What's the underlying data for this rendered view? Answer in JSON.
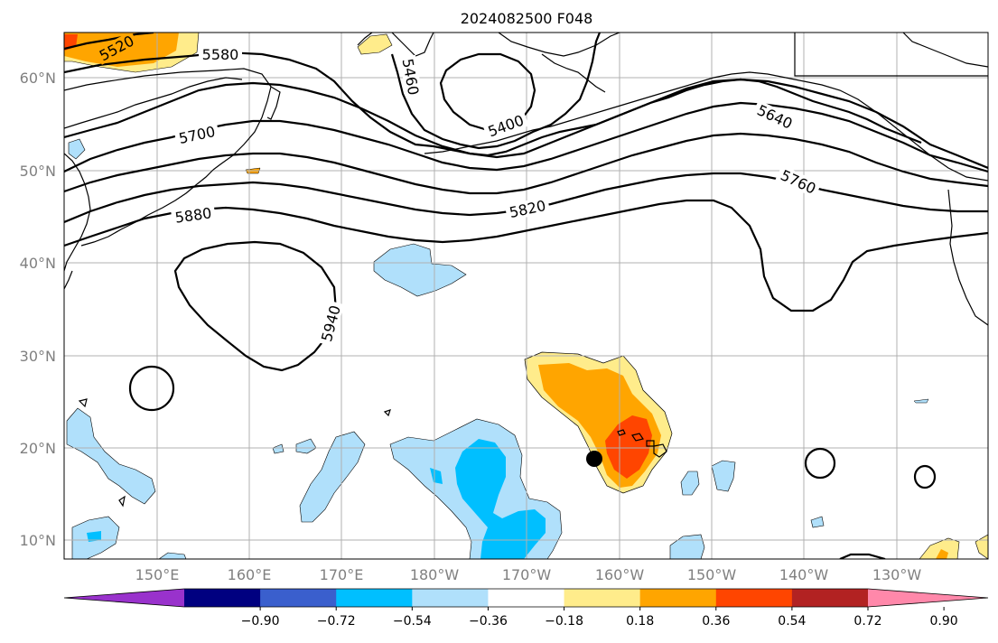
{
  "map": {
    "title": "2024082500 F048",
    "lat_labels": [
      "60°N",
      "50°N",
      "40°N",
      "30°N",
      "20°N",
      "10°N"
    ],
    "lon_labels": [
      "150°E",
      "160°E",
      "170°E",
      "180°W",
      "170°W",
      "160°W",
      "150°W",
      "140°W",
      "130°W"
    ],
    "contour_labels": [
      "5520",
      "5580",
      "5460",
      "5400",
      "5640",
      "5700",
      "5760",
      "5820",
      "5880",
      "5940"
    ],
    "gridlines": true,
    "colors": {
      "grid": "#b0b0b0",
      "contour": "#000000",
      "neg_lightest": "#b0e0fb",
      "neg_light": "#00bfff",
      "pos_lightest": "#ffec8b",
      "pos_light": "#ffa500",
      "pos_mid": "#ff4500"
    }
  },
  "colorbar": {
    "tick_labels": [
      "−0.90",
      "−0.72",
      "−0.54",
      "−0.36",
      "−0.18",
      "0.18",
      "0.36",
      "0.54",
      "0.72",
      "0.90"
    ],
    "colors": [
      "#9932cc",
      "#000080",
      "#3a5fcd",
      "#00bfff",
      "#b0e0fb",
      "#ffffff",
      "#ffec8b",
      "#ffa500",
      "#ff4500",
      "#b22222",
      "#ff88aa"
    ]
  }
}
